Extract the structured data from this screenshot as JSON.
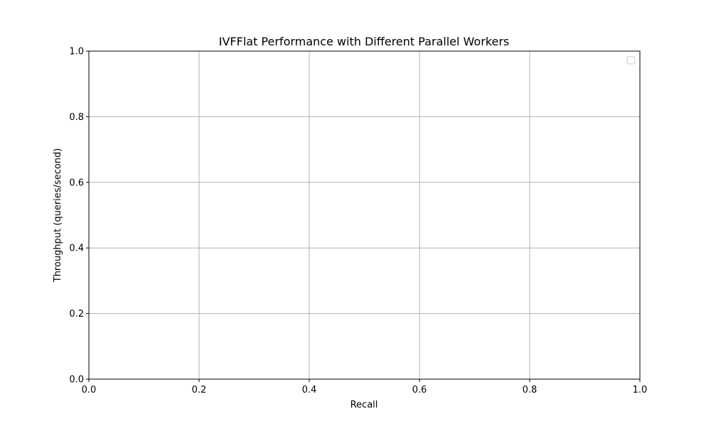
{
  "chart_data": {
    "type": "line",
    "title": "IVFFlat Performance with Different Parallel Workers",
    "xlabel": "Recall",
    "ylabel": "Throughput (queries/second)",
    "xlim": [
      0.0,
      1.0
    ],
    "ylim": [
      0.0,
      1.0
    ],
    "xticks": [
      "0.0",
      "0.2",
      "0.4",
      "0.6",
      "0.8",
      "1.0"
    ],
    "yticks": [
      "0.0",
      "0.2",
      "0.4",
      "0.6",
      "0.8",
      "1.0"
    ],
    "grid": true,
    "legend": "top-right",
    "series": []
  },
  "colors": {
    "grid": "#b0b0b0",
    "axis": "#000000",
    "legend_border": "#cccccc"
  }
}
